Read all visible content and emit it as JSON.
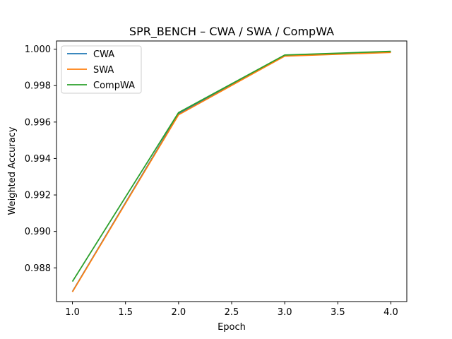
{
  "chart_data": {
    "type": "line",
    "title": "SPR_BENCH – CWA / SWA / CompWA",
    "xlabel": "Epoch",
    "ylabel": "Weighted Accuracy",
    "x": [
      1,
      2,
      3,
      4
    ],
    "xlim": [
      0.85,
      4.15
    ],
    "ylim": [
      0.98615,
      1.00045
    ],
    "xticks": [
      1.0,
      1.5,
      2.0,
      2.5,
      3.0,
      3.5,
      4.0
    ],
    "xtick_labels": [
      "1.0",
      "1.5",
      "2.0",
      "2.5",
      "3.0",
      "3.5",
      "4.0"
    ],
    "yticks": [
      0.988,
      0.99,
      0.992,
      0.994,
      0.996,
      0.998,
      1.0
    ],
    "ytick_labels": [
      "0.988",
      "0.990",
      "0.992",
      "0.994",
      "0.996",
      "0.998",
      "1.000"
    ],
    "grid": false,
    "legend_position": "top-left",
    "series": [
      {
        "name": "CWA",
        "color": "#1f77b4",
        "values": [
          0.9867,
          0.99645,
          0.99965,
          0.99985
        ]
      },
      {
        "name": "SWA",
        "color": "#ff7f0e",
        "values": [
          0.98668,
          0.9964,
          0.99962,
          0.99982
        ]
      },
      {
        "name": "CompWA",
        "color": "#2ca02c",
        "values": [
          0.98725,
          0.99652,
          0.99968,
          0.99988
        ]
      }
    ]
  }
}
